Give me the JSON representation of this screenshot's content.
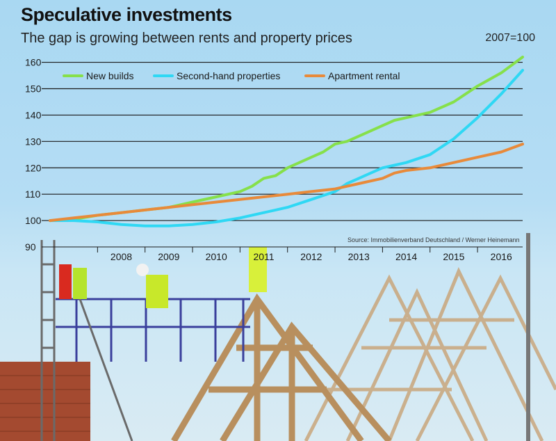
{
  "header": {
    "title": "Speculative investments",
    "subtitle": "The gap is growing between rents and property prices",
    "index_note": "2007=100"
  },
  "source": "Source: Immobilienverband Deutschland / Werner Heinemann",
  "colors": {
    "new_builds": "#86e04a",
    "second_hand": "#2fd8f4",
    "apartment_rental": "#e88a3a",
    "gridline": "#1a1a1a",
    "text": "#1a1a1a"
  },
  "chart_data": {
    "type": "line",
    "title": "Speculative investments",
    "subtitle": "The gap is growing between rents and property prices",
    "xlabel": "",
    "ylabel": "",
    "ylim": [
      90,
      162
    ],
    "xlim": [
      2007.0,
      2016.95
    ],
    "y_ticks": [
      90,
      100,
      110,
      120,
      130,
      140,
      150,
      160
    ],
    "x_ticks": [
      "2008",
      "2009",
      "2010",
      "2011",
      "2012",
      "2013",
      "2014",
      "2015",
      "2016"
    ],
    "grid": "horizontal",
    "legend_placement": "top-left",
    "series": [
      {
        "name": "New builds",
        "color": "#86e04a",
        "points": [
          [
            2007.0,
            100
          ],
          [
            2007.5,
            100.5
          ],
          [
            2008.0,
            102
          ],
          [
            2008.5,
            103
          ],
          [
            2009.0,
            104
          ],
          [
            2009.5,
            105
          ],
          [
            2010.0,
            107
          ],
          [
            2010.5,
            109
          ],
          [
            2011.0,
            111
          ],
          [
            2011.25,
            113
          ],
          [
            2011.5,
            116
          ],
          [
            2011.75,
            117
          ],
          [
            2012.0,
            120
          ],
          [
            2012.25,
            122
          ],
          [
            2012.5,
            124
          ],
          [
            2012.75,
            126
          ],
          [
            2013.0,
            129
          ],
          [
            2013.25,
            130
          ],
          [
            2013.5,
            132
          ],
          [
            2013.75,
            134
          ],
          [
            2014.0,
            136
          ],
          [
            2014.25,
            138
          ],
          [
            2014.5,
            139
          ],
          [
            2015.0,
            141
          ],
          [
            2015.5,
            145
          ],
          [
            2016.0,
            151
          ],
          [
            2016.5,
            156
          ],
          [
            2016.95,
            162
          ]
        ]
      },
      {
        "name": "Second-hand properties",
        "color": "#2fd8f4",
        "points": [
          [
            2007.0,
            100
          ],
          [
            2007.5,
            100
          ],
          [
            2008.0,
            99.5
          ],
          [
            2008.5,
            98.5
          ],
          [
            2009.0,
            98
          ],
          [
            2009.5,
            98
          ],
          [
            2010.0,
            98.5
          ],
          [
            2010.5,
            99.5
          ],
          [
            2011.0,
            101
          ],
          [
            2011.5,
            103
          ],
          [
            2012.0,
            105
          ],
          [
            2012.5,
            108
          ],
          [
            2013.0,
            111
          ],
          [
            2013.25,
            114
          ],
          [
            2013.5,
            116
          ],
          [
            2013.75,
            118
          ],
          [
            2014.0,
            120
          ],
          [
            2014.25,
            121
          ],
          [
            2014.5,
            122
          ],
          [
            2015.0,
            125
          ],
          [
            2015.5,
            131
          ],
          [
            2016.0,
            139
          ],
          [
            2016.5,
            148
          ],
          [
            2016.95,
            157
          ]
        ]
      },
      {
        "name": "Apartment rental",
        "color": "#e88a3a",
        "points": [
          [
            2007.0,
            100
          ],
          [
            2007.5,
            101
          ],
          [
            2008.0,
            102
          ],
          [
            2008.5,
            103
          ],
          [
            2009.0,
            104
          ],
          [
            2009.5,
            105
          ],
          [
            2010.0,
            106
          ],
          [
            2010.5,
            107
          ],
          [
            2011.0,
            108
          ],
          [
            2011.5,
            109
          ],
          [
            2012.0,
            110
          ],
          [
            2012.5,
            111
          ],
          [
            2013.0,
            112
          ],
          [
            2013.5,
            114
          ],
          [
            2014.0,
            116
          ],
          [
            2014.25,
            118
          ],
          [
            2014.5,
            119
          ],
          [
            2015.0,
            120
          ],
          [
            2015.5,
            122
          ],
          [
            2016.0,
            124
          ],
          [
            2016.5,
            126
          ],
          [
            2016.95,
            129
          ]
        ]
      }
    ]
  }
}
